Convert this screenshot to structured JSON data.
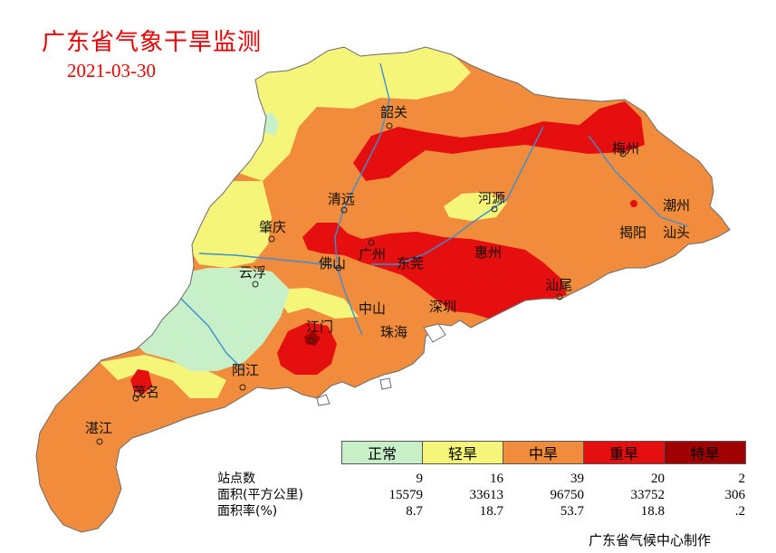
{
  "title": "广东省气象干旱监测",
  "date": "2021-03-30",
  "colors": {
    "normal": "#c8f0c8",
    "light": "#f5f57a",
    "moderate": "#f08c3c",
    "severe": "#e60f0f",
    "extreme": "#a00000",
    "river": "#3a8fd6",
    "border": "#6b6b6b"
  },
  "cities": [
    {
      "id": "shaoguan",
      "name": "韶关"
    },
    {
      "id": "meizhou",
      "name": "梅州"
    },
    {
      "id": "qingyuan",
      "name": "清远"
    },
    {
      "id": "heyuan",
      "name": "河源"
    },
    {
      "id": "chaozhou",
      "name": "潮州"
    },
    {
      "id": "zhaoqing",
      "name": "肇庆"
    },
    {
      "id": "jieyang",
      "name": "揭阳"
    },
    {
      "id": "shantou",
      "name": "汕头"
    },
    {
      "id": "guangzhou",
      "name": "广州"
    },
    {
      "id": "huizhou",
      "name": "惠州"
    },
    {
      "id": "yunfu",
      "name": "云浮"
    },
    {
      "id": "foshan",
      "name": "佛山"
    },
    {
      "id": "dongguan",
      "name": "东莞"
    },
    {
      "id": "shanwei",
      "name": "汕尾"
    },
    {
      "id": "zhongshan",
      "name": "中山"
    },
    {
      "id": "shenzhen",
      "name": "深圳"
    },
    {
      "id": "jiangmen",
      "name": "江门"
    },
    {
      "id": "zhuhai",
      "name": "珠海"
    },
    {
      "id": "yangjiang",
      "name": "阳江"
    },
    {
      "id": "maoming",
      "name": "茂名"
    },
    {
      "id": "zhanjiang",
      "name": "湛江"
    }
  ],
  "legend": [
    {
      "label": "正常",
      "color": "#c8f0c8"
    },
    {
      "label": "轻旱",
      "color": "#f5f57a"
    },
    {
      "label": "中旱",
      "color": "#f08c3c"
    },
    {
      "label": "重旱",
      "color": "#e60f0f"
    },
    {
      "label": "特旱",
      "color": "#a00000"
    }
  ],
  "stats": {
    "rows": [
      {
        "label": "站点数",
        "values": [
          "9",
          "16",
          "39",
          "20",
          "2"
        ]
      },
      {
        "label": "面积(平方公里)",
        "values": [
          "15579",
          "33613",
          "96750",
          "33752",
          "306"
        ]
      },
      {
        "label": "面积率(%)",
        "values": [
          "8.7",
          "18.7",
          "53.7",
          "18.8",
          ".2"
        ]
      }
    ]
  },
  "credit": "广东省气候中心制作"
}
